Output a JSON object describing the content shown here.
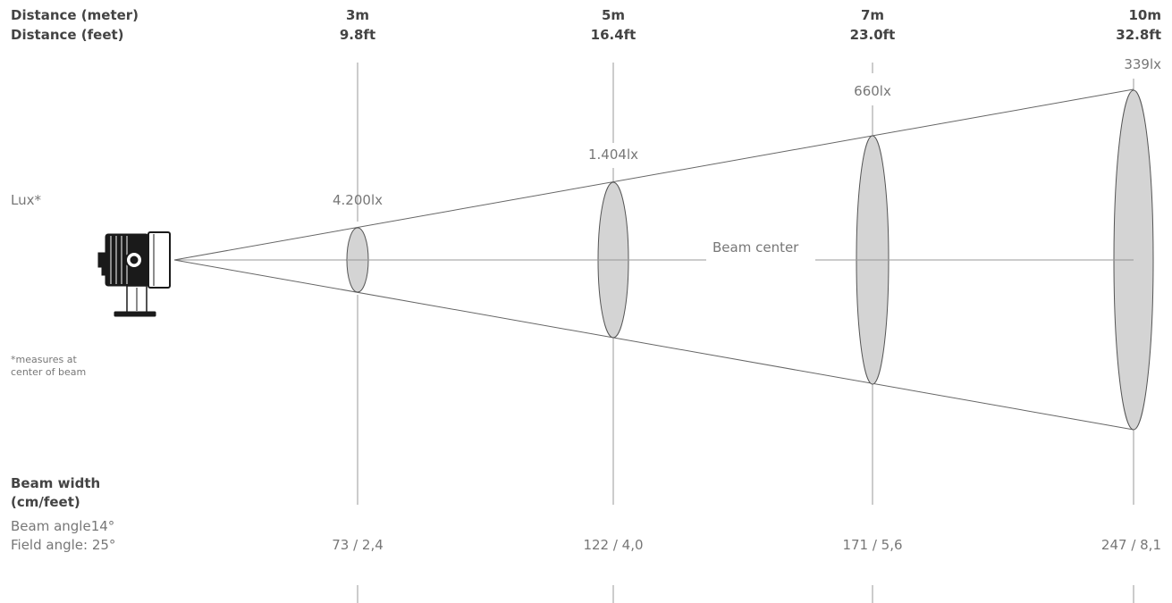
{
  "header": {
    "distance_meter_label": "Distance (meter)",
    "distance_feet_label": "Distance (feet)"
  },
  "columns": [
    {
      "meters": "3m",
      "feet": "9.8ft",
      "lux": "4.200lx",
      "beam_width": "73 / 2,4"
    },
    {
      "meters": "5m",
      "feet": "16.4ft",
      "lux": "1.404lx",
      "beam_width": "122 / 4,0"
    },
    {
      "meters": "7m",
      "feet": "23.0ft",
      "lux": "660lx",
      "beam_width": "171 / 5,6"
    },
    {
      "meters": "10m",
      "feet": "32.8ft",
      "lux": "339lx",
      "beam_width": "247 / 8,1"
    }
  ],
  "labels": {
    "lux": "Lux*",
    "lux_note": "*measures at center of beam",
    "beam_center": "Beam center",
    "beam_width_title_line1": "Beam width",
    "beam_width_title_line2": "(cm/feet)",
    "beam_angle": "Beam angle14°",
    "field_angle": "Field angle: 25°"
  },
  "colors": {
    "line": "#888888",
    "ellipse_fill": "#d4d4d4",
    "ellipse_stroke": "#555555",
    "fixture": "#1a1a1a"
  },
  "icons": {
    "fixture": "spotlight-fixture-icon"
  }
}
